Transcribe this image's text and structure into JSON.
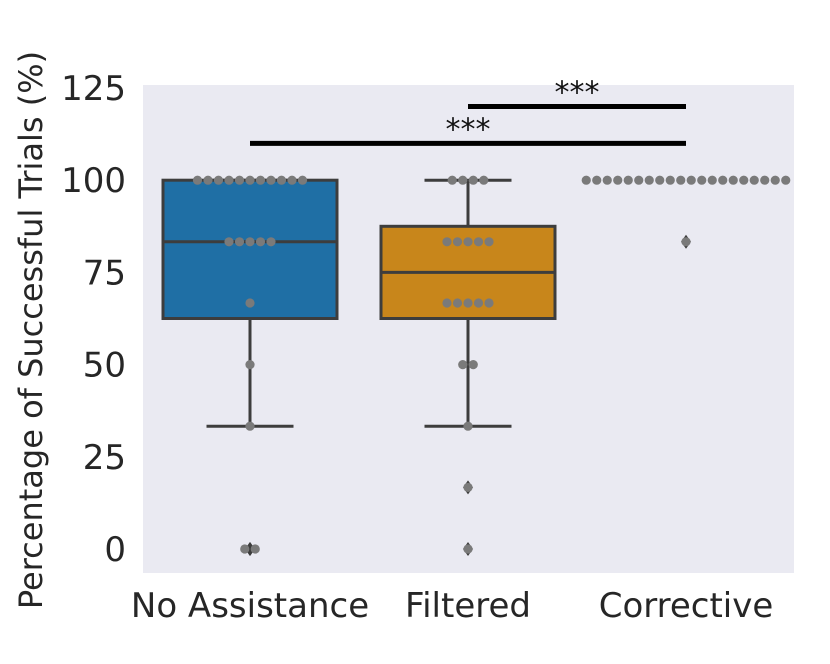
{
  "chart_data": {
    "type": "box",
    "title": "",
    "xlabel": "",
    "ylabel": "Percentage of Successful Trials (%)",
    "ylim": [
      -6,
      125
    ],
    "yticks": [
      0,
      25,
      50,
      75,
      100,
      125
    ],
    "grid": false,
    "background": "#eaeaf2",
    "categories": [
      "No Assistance",
      "Filtered",
      "Corrective"
    ],
    "boxes": [
      {
        "name": "No Assistance",
        "color": "#1f6fa5",
        "q1": 62.5,
        "median": 83.3,
        "q3": 100,
        "whisker_low": 33.3,
        "whisker_high": 100,
        "fliers": [
          0,
          0
        ],
        "points": [
          100,
          100,
          100,
          100,
          100,
          100,
          100,
          100,
          100,
          100,
          100,
          83.3,
          83.3,
          83.3,
          83.3,
          83.3,
          66.7,
          50,
          33.3,
          0,
          0
        ]
      },
      {
        "name": "Filtered",
        "color": "#c8861b",
        "q1": 62.5,
        "median": 75,
        "q3": 87.5,
        "whisker_low": 33.3,
        "whisker_high": 100,
        "fliers": [
          16.7,
          0
        ],
        "points": [
          100,
          100,
          100,
          100,
          83.3,
          83.3,
          83.3,
          83.3,
          83.3,
          66.7,
          66.7,
          66.7,
          66.7,
          66.7,
          50,
          50,
          33.3,
          16.7,
          0
        ]
      },
      {
        "name": "Corrective",
        "color": "#3a9b5a",
        "q1": 100,
        "median": 100,
        "q3": 100,
        "whisker_low": 100,
        "whisker_high": 100,
        "fliers": [
          83.3
        ],
        "points": [
          100,
          100,
          100,
          100,
          100,
          100,
          100,
          100,
          100,
          100,
          100,
          100,
          100,
          100,
          100,
          100,
          100,
          100,
          100,
          100,
          83.3
        ]
      }
    ],
    "significance": [
      {
        "from": "Filtered",
        "to": "Corrective",
        "y": 120,
        "label": "***"
      },
      {
        "from": "No Assistance",
        "to": "Corrective",
        "y": 110,
        "label": "***"
      }
    ]
  }
}
